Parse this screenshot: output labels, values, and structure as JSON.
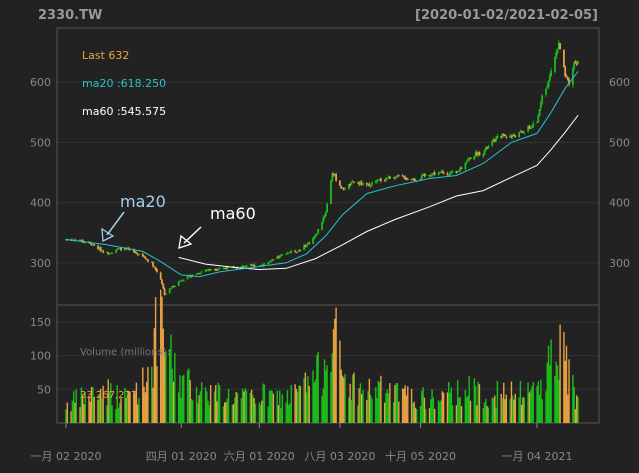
{
  "header": {
    "symbol": "2330.TW",
    "range": "[2020-01-02/2021-02-05]"
  },
  "colors": {
    "background": "#222222",
    "panel_border": "#555555",
    "grid": "#333333",
    "axis_text": "#888888",
    "title": "#999999",
    "candle_up": "#1bbc1b",
    "candle_down": "#e8a242",
    "ma20": "#27c3c8",
    "ma60": "#ffffff",
    "last": "#e8a242"
  },
  "annotations": {
    "last": "Last 632",
    "ma20_value": "ma20 :618.250",
    "ma60_value": "ma60 :545.575",
    "ma20_label": "ma20",
    "ma60_label": "ma60",
    "volume_title": "Volume (millions):",
    "volume_value": "33,267,277"
  },
  "chart_data": {
    "type": "candlestick",
    "x_labels": [
      "一月 02 2020",
      "四月 01 2020",
      "六月 01 2020",
      "八月 03 2020",
      "十月 05 2020",
      "一月 04 2021"
    ],
    "x_label_dates": [
      "2020-01-02",
      "2020-04-01",
      "2020-06-01",
      "2020-08-03",
      "2020-10-05",
      "2021-01-04"
    ],
    "x_range": [
      "2020-01-02",
      "2021-02-05"
    ],
    "price": {
      "yticks": [
        300,
        400,
        500,
        600
      ],
      "ylim": [
        230,
        690
      ],
      "close_points": [
        [
          "2020-01-02",
          339
        ],
        [
          "2020-01-10",
          338
        ],
        [
          "2020-01-20",
          333
        ],
        [
          "2020-02-03",
          316
        ],
        [
          "2020-02-12",
          323
        ],
        [
          "2020-02-20",
          322
        ],
        [
          "2020-03-02",
          310
        ],
        [
          "2020-03-09",
          300
        ],
        [
          "2020-03-16",
          274
        ],
        [
          "2020-03-19",
          248
        ],
        [
          "2020-03-26",
          262
        ],
        [
          "2020-04-01",
          272
        ],
        [
          "2020-04-10",
          280
        ],
        [
          "2020-04-20",
          288
        ],
        [
          "2020-05-01",
          291
        ],
        [
          "2020-05-15",
          293
        ],
        [
          "2020-06-01",
          296
        ],
        [
          "2020-06-10",
          302
        ],
        [
          "2020-06-22",
          317
        ],
        [
          "2020-07-01",
          320
        ],
        [
          "2020-07-08",
          330
        ],
        [
          "2020-07-15",
          345
        ],
        [
          "2020-07-23",
          385
        ],
        [
          "2020-07-28",
          450
        ],
        [
          "2020-08-05",
          422
        ],
        [
          "2020-08-14",
          434
        ],
        [
          "2020-08-24",
          428
        ],
        [
          "2020-09-01",
          436
        ],
        [
          "2020-09-15",
          444
        ],
        [
          "2020-10-01",
          438
        ],
        [
          "2020-10-12",
          448
        ],
        [
          "2020-10-20",
          449
        ],
        [
          "2020-11-02",
          448
        ],
        [
          "2020-11-09",
          468
        ],
        [
          "2020-11-16",
          480
        ],
        [
          "2020-11-23",
          484
        ],
        [
          "2020-12-01",
          502
        ],
        [
          "2020-12-07",
          512
        ],
        [
          "2020-12-15",
          510
        ],
        [
          "2020-12-22",
          515
        ],
        [
          "2021-01-04",
          532
        ],
        [
          "2021-01-08",
          582
        ],
        [
          "2021-01-12",
          592
        ],
        [
          "2021-01-15",
          620
        ],
        [
          "2021-01-21",
          663
        ],
        [
          "2021-01-26",
          610
        ],
        [
          "2021-01-29",
          595
        ],
        [
          "2021-02-02",
          632
        ],
        [
          "2021-02-05",
          632
        ]
      ],
      "ma20_points": [
        [
          "2020-01-02",
          339
        ],
        [
          "2020-02-03",
          330
        ],
        [
          "2020-03-02",
          319
        ],
        [
          "2020-03-16",
          302
        ],
        [
          "2020-04-01",
          280
        ],
        [
          "2020-04-15",
          277
        ],
        [
          "2020-05-01",
          285
        ],
        [
          "2020-06-01",
          294
        ],
        [
          "2020-06-22",
          300
        ],
        [
          "2020-07-08",
          315
        ],
        [
          "2020-07-23",
          345
        ],
        [
          "2020-08-05",
          380
        ],
        [
          "2020-08-24",
          415
        ],
        [
          "2020-09-15",
          428
        ],
        [
          "2020-10-12",
          440
        ],
        [
          "2020-11-02",
          445
        ],
        [
          "2020-11-23",
          465
        ],
        [
          "2020-12-15",
          500
        ],
        [
          "2021-01-04",
          515
        ],
        [
          "2021-01-15",
          550
        ],
        [
          "2021-01-26",
          590
        ],
        [
          "2021-02-05",
          618
        ]
      ],
      "ma60_points": [
        [
          "2020-03-30",
          309
        ],
        [
          "2020-04-20",
          298
        ],
        [
          "2020-05-15",
          292
        ],
        [
          "2020-06-01",
          289
        ],
        [
          "2020-06-22",
          291
        ],
        [
          "2020-07-15",
          307
        ],
        [
          "2020-08-05",
          330
        ],
        [
          "2020-08-24",
          352
        ],
        [
          "2020-09-15",
          372
        ],
        [
          "2020-10-12",
          393
        ],
        [
          "2020-11-02",
          411
        ],
        [
          "2020-11-23",
          420
        ],
        [
          "2020-12-15",
          442
        ],
        [
          "2021-01-04",
          462
        ],
        [
          "2021-01-15",
          488
        ],
        [
          "2021-01-26",
          517
        ],
        [
          "2021-02-05",
          545
        ]
      ]
    },
    "volume": {
      "yticks": [
        50,
        100,
        150
      ],
      "ylim": [
        0,
        175
      ],
      "points": [
        [
          "2020-01-02",
          30
        ],
        [
          "2020-01-15",
          42
        ],
        [
          "2020-02-03",
          55
        ],
        [
          "2020-02-15",
          38
        ],
        [
          "2020-03-02",
          65
        ],
        [
          "2020-03-10",
          110
        ],
        [
          "2020-03-13",
          160
        ],
        [
          "2020-03-19",
          140
        ],
        [
          "2020-03-25",
          95
        ],
        [
          "2020-04-01",
          70
        ],
        [
          "2020-04-15",
          55
        ],
        [
          "2020-05-01",
          48
        ],
        [
          "2020-05-20",
          40
        ],
        [
          "2020-06-05",
          45
        ],
        [
          "2020-06-20",
          40
        ],
        [
          "2020-07-01",
          50
        ],
        [
          "2020-07-20",
          85
        ],
        [
          "2020-07-28",
          170
        ],
        [
          "2020-08-05",
          75
        ],
        [
          "2020-08-20",
          50
        ],
        [
          "2020-09-01",
          55
        ],
        [
          "2020-09-20",
          45
        ],
        [
          "2020-10-05",
          40
        ],
        [
          "2020-10-20",
          38
        ],
        [
          "2020-11-05",
          55
        ],
        [
          "2020-11-20",
          50
        ],
        [
          "2020-12-05",
          48
        ],
        [
          "2020-12-20",
          45
        ],
        [
          "2021-01-05",
          60
        ],
        [
          "2021-01-12",
          90
        ],
        [
          "2021-01-21",
          135
        ],
        [
          "2021-01-26",
          95
        ],
        [
          "2021-02-05",
          33
        ]
      ]
    }
  }
}
